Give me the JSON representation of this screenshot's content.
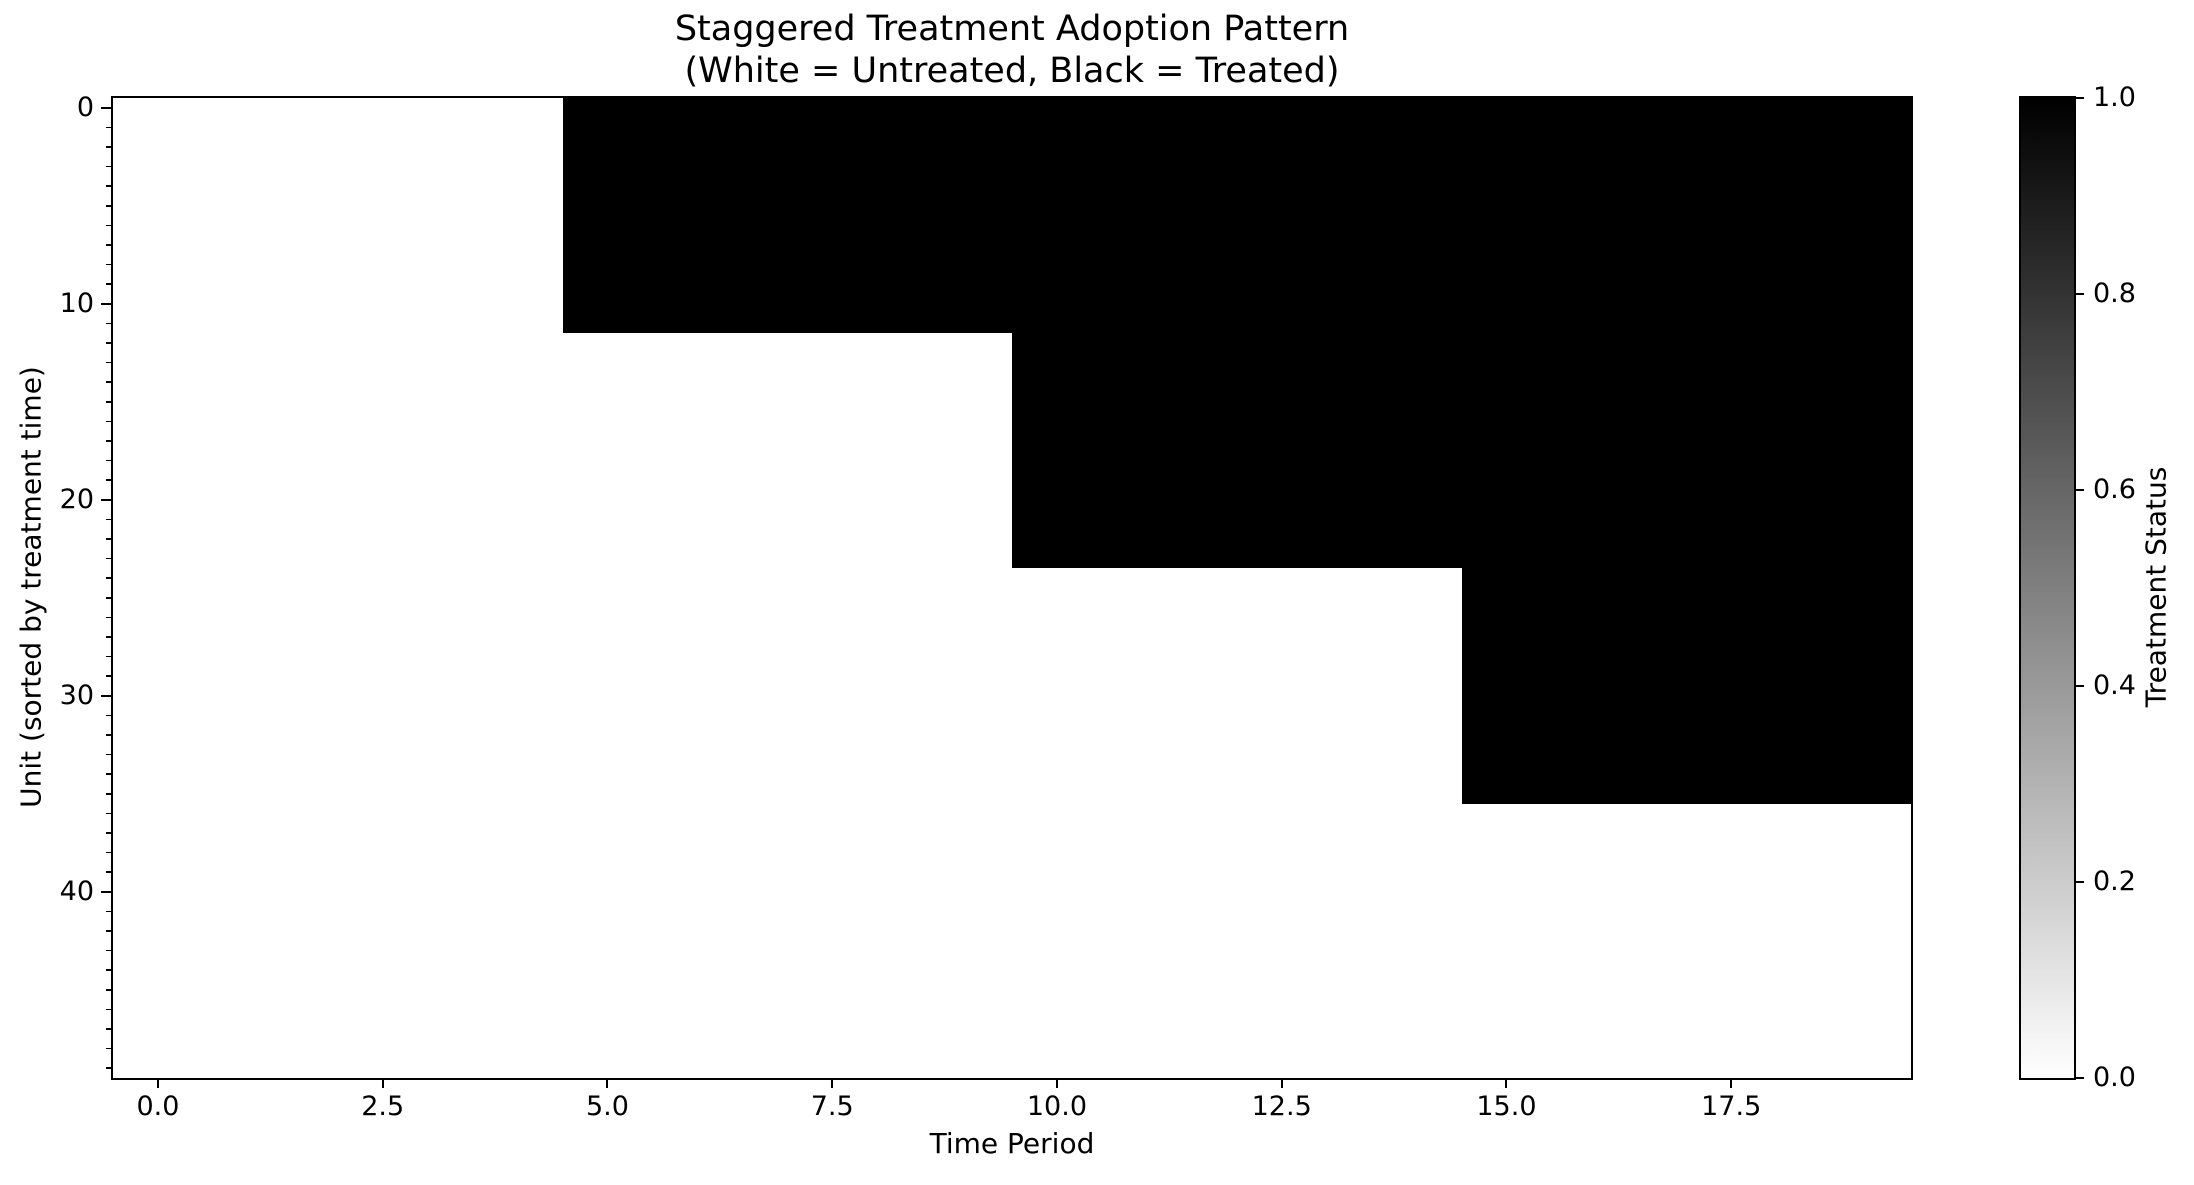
{
  "figure": {
    "title_line1": "Staggered Treatment Adoption Pattern",
    "title_line2": "(White = Untreated, Black = Treated)"
  },
  "axes": {
    "xlabel": "Time Period",
    "ylabel": "Unit (sorted by treatment time)",
    "x_tick_labels": [
      "0.0",
      "2.5",
      "5.0",
      "7.5",
      "10.0",
      "12.5",
      "15.0",
      "17.5"
    ],
    "y_tick_labels": [
      "0",
      "10",
      "20",
      "30",
      "40"
    ]
  },
  "colorbar": {
    "label": "Treatment Status",
    "tick_labels": [
      "0.0",
      "0.2",
      "0.4",
      "0.6",
      "0.8",
      "1.0"
    ],
    "min_color": "#ffffff",
    "max_color": "#000000"
  },
  "chart_data": {
    "type": "heatmap",
    "title": "Staggered Treatment Adoption Pattern (White = Untreated, Black = Treated)",
    "xlabel": "Time Period",
    "ylabel": "Unit (sorted by treatment time)",
    "colorbar_label": "Treatment Status",
    "n_units": 50,
    "n_periods": 20,
    "x_extent": [
      -0.5,
      19.5
    ],
    "y_extent": [
      -0.5,
      49.5
    ],
    "x_ticks": [
      0.0,
      2.5,
      5.0,
      7.5,
      10.0,
      12.5,
      15.0,
      17.5
    ],
    "y_ticks": [
      0,
      10,
      20,
      30,
      40
    ],
    "y_minor_tick_step": 1,
    "colorbar_range": [
      0.0,
      1.0
    ],
    "colorbar_ticks": [
      0.0,
      0.2,
      0.4,
      0.6,
      0.8,
      1.0
    ],
    "value_colors": {
      "untreated": "#ffffff",
      "treated": "#000000"
    },
    "cohorts": [
      {
        "units_from": 0,
        "units_to": 11,
        "n_units": 12,
        "first_treated_period": 5
      },
      {
        "units_from": 12,
        "units_to": 23,
        "n_units": 12,
        "first_treated_period": 10
      },
      {
        "units_from": 24,
        "units_to": 35,
        "n_units": 12,
        "first_treated_period": 15
      },
      {
        "units_from": 36,
        "units_to": 49,
        "n_units": 14,
        "first_treated_period": null
      }
    ]
  }
}
